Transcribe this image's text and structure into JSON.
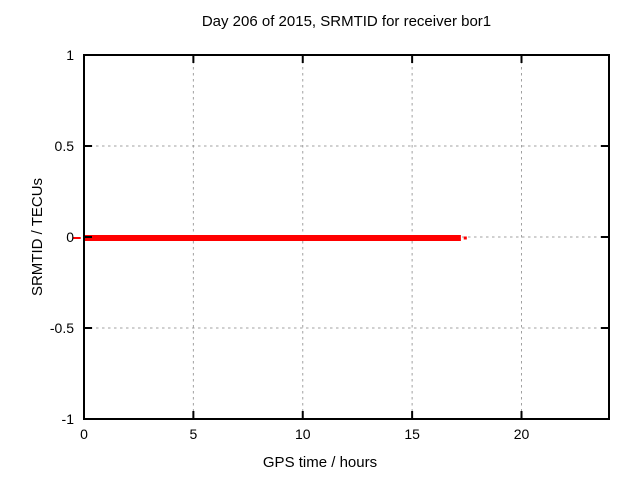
{
  "chart_data": {
    "type": "line",
    "title": "Day 206 of 2015, SRMTID for receiver bor1",
    "xlabel": "GPS time / hours",
    "ylabel": "SRMTID / TECUs",
    "xlim": [
      0,
      24
    ],
    "ylim": [
      -1,
      1
    ],
    "xticks": [
      0,
      5,
      10,
      15,
      20
    ],
    "yticks": [
      1,
      0.5,
      0,
      -0.5,
      -1
    ],
    "grid": true,
    "legend": "none",
    "colors": {
      "background": "#ffffff",
      "border": "#000000",
      "grid": "#a0a0a0",
      "text": "#000000",
      "series": "#ff0000"
    },
    "series": [
      {
        "name": "SRMTID",
        "color": "#ff0000",
        "style": "thick horizontal line at y=0",
        "segments": [
          {
            "x": [
              0,
              17.23
            ],
            "y": [
              0,
              0
            ],
            "linewidth": 6
          },
          {
            "x": [
              17.36,
              17.5
            ],
            "y": [
              0,
              0
            ],
            "linewidth": 3
          },
          {
            "x": [
              -0.5,
              -0.15
            ],
            "y": [
              0,
              0
            ],
            "linewidth": 2,
            "clip": false
          }
        ]
      }
    ]
  }
}
